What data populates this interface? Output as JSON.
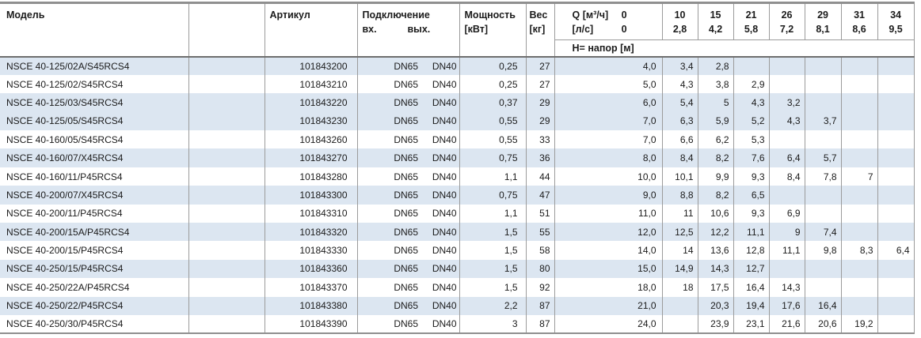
{
  "colors": {
    "stripe": "#dce6f1",
    "grid": "#9b9b9b",
    "rule": "#8f8f8f",
    "text": "#1b1b1b"
  },
  "table": {
    "header": {
      "model": "Модель",
      "article": "Артикул",
      "connection": "Подключение",
      "inlet": "вх.",
      "outlet": "вых.",
      "power_line1": "Мощность",
      "power_line2": "[кВт]",
      "weight_line1": "Вес",
      "weight_line2": "[кг]",
      "q_label": "Q [м³/ч]",
      "q_zero": "0",
      "ls_label": "[л/с]",
      "ls_zero": "0",
      "head_band": "H= напор [м]",
      "flow_cols": [
        {
          "m3h": "10",
          "ls": "2,8"
        },
        {
          "m3h": "15",
          "ls": "4,2"
        },
        {
          "m3h": "21",
          "ls": "5,8"
        },
        {
          "m3h": "26",
          "ls": "7,2"
        },
        {
          "m3h": "29",
          "ls": "8,1"
        },
        {
          "m3h": "31",
          "ls": "8,6"
        },
        {
          "m3h": "34",
          "ls": "9,5"
        }
      ]
    },
    "rows": [
      {
        "model": "NSCE 40-125/02A/S45RCS4",
        "article": "101843200",
        "inlet": "DN65",
        "outlet": "DN40",
        "power": "0,25",
        "weight": "27",
        "h": [
          "4,0",
          "3,4",
          "2,8",
          "",
          "",
          "",
          "",
          ""
        ],
        "shaded": true
      },
      {
        "model": "NSCE 40-125/02/S45RCS4",
        "article": "101843210",
        "inlet": "DN65",
        "outlet": "DN40",
        "power": "0,25",
        "weight": "27",
        "h": [
          "5,0",
          "4,3",
          "3,8",
          "2,9",
          "",
          "",
          "",
          ""
        ],
        "shaded": false
      },
      {
        "model": "NSCE 40-125/03/S45RCS4",
        "article": "101843220",
        "inlet": "DN65",
        "outlet": "DN40",
        "power": "0,37",
        "weight": "29",
        "h": [
          "6,0",
          "5,4",
          "5",
          "4,3",
          "3,2",
          "",
          "",
          ""
        ],
        "shaded": true
      },
      {
        "model": "NSCE 40-125/05/S45RCS4",
        "article": "101843230",
        "inlet": "DN65",
        "outlet": "DN40",
        "power": "0,55",
        "weight": "29",
        "h": [
          "7,0",
          "6,3",
          "5,9",
          "5,2",
          "4,3",
          "3,7",
          "",
          ""
        ],
        "shaded": true
      },
      {
        "model": "NSCE 40-160/05/S45RCS4",
        "article": "101843260",
        "inlet": "DN65",
        "outlet": "DN40",
        "power": "0,55",
        "weight": "33",
        "h": [
          "7,0",
          "6,6",
          "6,2",
          "5,3",
          "",
          "",
          "",
          ""
        ],
        "shaded": false
      },
      {
        "model": "NSCE 40-160/07/X45RCS4",
        "article": "101843270",
        "inlet": "DN65",
        "outlet": "DN40",
        "power": "0,75",
        "weight": "36",
        "h": [
          "8,0",
          "8,4",
          "8,2",
          "7,6",
          "6,4",
          "5,7",
          "",
          ""
        ],
        "shaded": true
      },
      {
        "model": "NSCE 40-160/11/P45RCS4",
        "article": "101843280",
        "inlet": "DN65",
        "outlet": "DN40",
        "power": "1,1",
        "weight": "44",
        "h": [
          "10,0",
          "10,1",
          "9,9",
          "9,3",
          "8,4",
          "7,8",
          "7",
          ""
        ],
        "shaded": false
      },
      {
        "model": "NSCE 40-200/07/X45RCS4",
        "article": "101843300",
        "inlet": "DN65",
        "outlet": "DN40",
        "power": "0,75",
        "weight": "47",
        "h": [
          "9,0",
          "8,8",
          "8,2",
          "6,5",
          "",
          "",
          "",
          ""
        ],
        "shaded": true
      },
      {
        "model": "NSCE 40-200/11/P45RCS4",
        "article": "101843310",
        "inlet": "DN65",
        "outlet": "DN40",
        "power": "1,1",
        "weight": "51",
        "h": [
          "11,0",
          "11",
          "10,6",
          "9,3",
          "6,9",
          "",
          "",
          ""
        ],
        "shaded": false
      },
      {
        "model": "NSCE 40-200/15A/P45RCS4",
        "article": "101843320",
        "inlet": "DN65",
        "outlet": "DN40",
        "power": "1,5",
        "weight": "55",
        "h": [
          "12,0",
          "12,5",
          "12,2",
          "11,1",
          "9",
          "7,4",
          "",
          ""
        ],
        "shaded": true
      },
      {
        "model": "NSCE 40-200/15/P45RCS4",
        "article": "101843330",
        "inlet": "DN65",
        "outlet": "DN40",
        "power": "1,5",
        "weight": "58",
        "h": [
          "14,0",
          "14",
          "13,6",
          "12,8",
          "11,1",
          "9,8",
          "8,3",
          "6,4"
        ],
        "shaded": false
      },
      {
        "model": "NSCE 40-250/15/P45RCS4",
        "article": "101843360",
        "inlet": "DN65",
        "outlet": "DN40",
        "power": "1,5",
        "weight": "80",
        "h": [
          "15,0",
          "14,9",
          "14,3",
          "12,7",
          "",
          "",
          "",
          ""
        ],
        "shaded": true
      },
      {
        "model": "NSCE 40-250/22A/P45RCS4",
        "article": "101843370",
        "inlet": "DN65",
        "outlet": "DN40",
        "power": "1,5",
        "weight": "92",
        "h": [
          "18,0",
          "18",
          "17,5",
          "16,4",
          "14,3",
          "",
          "",
          ""
        ],
        "shaded": false
      },
      {
        "model": "NSCE 40-250/22/P45RCS4",
        "article": "101843380",
        "inlet": "DN65",
        "outlet": "DN40",
        "power": "2,2",
        "weight": "87",
        "h": [
          "21,0",
          "",
          "20,3",
          "19,4",
          "17,6",
          "16,4",
          "",
          ""
        ],
        "shaded": true
      },
      {
        "model": "NSCE 40-250/30/P45RCS4",
        "article": "101843390",
        "inlet": "DN65",
        "outlet": "DN40",
        "power": "3",
        "weight": "87",
        "h": [
          "24,0",
          "",
          "23,9",
          "23,1",
          "21,6",
          "20,6",
          "19,2",
          ""
        ],
        "shaded": false
      }
    ]
  }
}
